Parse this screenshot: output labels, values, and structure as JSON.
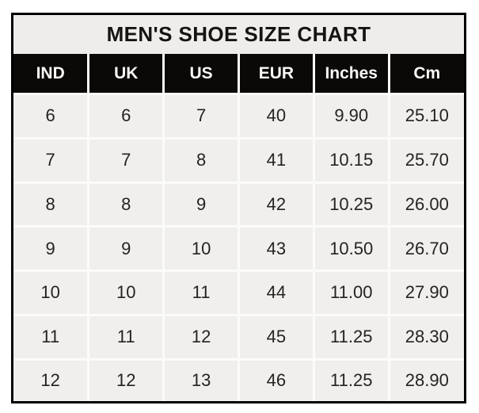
{
  "title": "MEN'S SHOE SIZE CHART",
  "table": {
    "columns": [
      "IND",
      "UK",
      "US",
      "EUR",
      "Inches",
      "Cm"
    ],
    "rows": [
      [
        "6",
        "6",
        "7",
        "40",
        "9.90",
        "25.10"
      ],
      [
        "7",
        "7",
        "8",
        "41",
        "10.15",
        "25.70"
      ],
      [
        "8",
        "8",
        "9",
        "42",
        "10.25",
        "26.00"
      ],
      [
        "9",
        "9",
        "10",
        "43",
        "10.50",
        "26.70"
      ],
      [
        "10",
        "10",
        "11",
        "44",
        "11.00",
        "27.90"
      ],
      [
        "11",
        "11",
        "12",
        "45",
        "11.25",
        "28.30"
      ],
      [
        "12",
        "12",
        "13",
        "46",
        "11.25",
        "28.90"
      ]
    ]
  },
  "colors": {
    "page_bg": "#ffffff",
    "border": "#000000",
    "title_bg": "#eeedeb",
    "header_bg": "#0a0908",
    "header_text": "#faf8f5",
    "cell_bg": "#f1efed",
    "cell_text": "#26221f",
    "gridline": "#fbfbfa"
  },
  "chart_data": {
    "type": "table",
    "title": "MEN'S SHOE SIZE CHART",
    "columns": [
      "IND",
      "UK",
      "US",
      "EUR",
      "Inches",
      "Cm"
    ],
    "rows": [
      [
        "6",
        "6",
        "7",
        "40",
        "9.90",
        "25.10"
      ],
      [
        "7",
        "7",
        "8",
        "41",
        "10.15",
        "25.70"
      ],
      [
        "8",
        "8",
        "9",
        "42",
        "10.25",
        "26.00"
      ],
      [
        "9",
        "9",
        "10",
        "43",
        "10.50",
        "26.70"
      ],
      [
        "10",
        "10",
        "11",
        "44",
        "11.00",
        "27.90"
      ],
      [
        "11",
        "11",
        "12",
        "45",
        "11.25",
        "28.30"
      ],
      [
        "12",
        "12",
        "13",
        "46",
        "11.25",
        "28.90"
      ]
    ]
  }
}
